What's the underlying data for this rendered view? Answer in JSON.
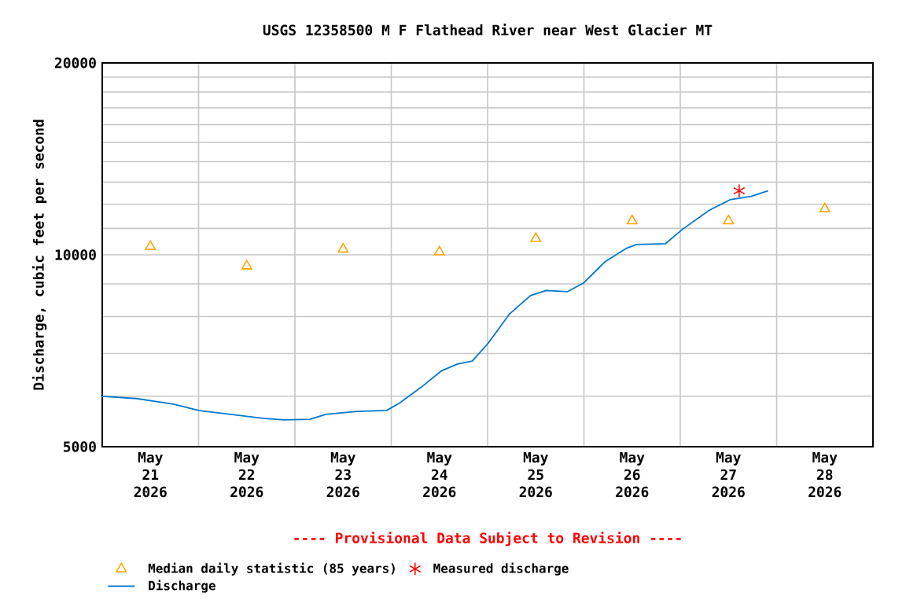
{
  "chart_data": {
    "type": "line",
    "title": "USGS 12358500 M F Flathead River near West Glacier MT",
    "ylabel": "Discharge, cubic feet per second",
    "annotations": [
      "---- Provisional Data Subject to Revision ----"
    ],
    "log": "y",
    "grid": true,
    "legend": "bottom",
    "xlim": [
      "2026-05-21T00:00",
      "2026-05-29T00:00"
    ],
    "xticks": [
      {
        "value": "2026-05-22T00:00",
        "label": null
      },
      {
        "value": "2026-05-23T00:00",
        "label": null
      },
      {
        "value": "2026-05-24T00:00",
        "label": null
      },
      {
        "value": "2026-05-25T00:00",
        "label": null
      },
      {
        "value": "2026-05-26T00:00",
        "label": null
      },
      {
        "value": "2026-05-27T00:00",
        "label": null
      },
      {
        "value": "2026-05-28T00:00",
        "label": null
      },
      {
        "value": "2026-05-21T12:00",
        "label": "May 21 2026"
      },
      {
        "value": "2026-05-22T12:00",
        "label": "May 22 2026"
      },
      {
        "value": "2026-05-23T12:00",
        "label": "May 23 2026"
      },
      {
        "value": "2026-05-24T12:00",
        "label": "May 24 2026"
      },
      {
        "value": "2026-05-25T12:00",
        "label": "May 25 2026"
      },
      {
        "value": "2026-05-26T12:00",
        "label": "May 26 2026"
      },
      {
        "value": "2026-05-27T12:00",
        "label": "May 27 2026"
      },
      {
        "value": "2026-05-28T12:00",
        "label": "May 28 2026"
      }
    ],
    "ylim": [
      5000,
      20000
    ],
    "yticks": [
      5000,
      {
        "value": 6000,
        "label": null
      },
      {
        "value": 7000,
        "label": null
      },
      {
        "value": 8000,
        "label": null
      },
      {
        "value": 9000,
        "label": null
      },
      10000,
      {
        "value": 11000,
        "label": null
      },
      {
        "value": 12000,
        "label": null
      },
      {
        "value": 13000,
        "label": null
      },
      {
        "value": 14000,
        "label": null
      },
      {
        "value": 15000,
        "label": null
      },
      {
        "value": 16000,
        "label": null
      },
      {
        "value": 17000,
        "label": null
      },
      {
        "value": 18000,
        "label": null
      },
      {
        "value": 19000,
        "label": null
      },
      20000
    ],
    "series": [
      {
        "name": "Median daily statistic (85 years)",
        "type": "scatter",
        "marker": "triangle",
        "color": "#ffa500",
        "x": [
          "2026-05-21T12:00",
          "2026-05-22T12:00",
          "2026-05-23T12:00",
          "2026-05-24T12:00",
          "2026-05-25T12:00",
          "2026-05-26T12:00",
          "2026-05-27T12:00",
          "2026-05-28T12:00"
        ],
        "values": [
          10300,
          9600,
          10200,
          10100,
          10600,
          11300,
          11300,
          11800
        ]
      },
      {
        "name": "Measured discharge",
        "type": "scatter",
        "marker": "cross",
        "color": "#ff0000",
        "x": [
          "2026-05-27T14:40"
        ],
        "values": [
          12600
        ]
      },
      {
        "name": "Discharge",
        "marker": "none",
        "line_style": "solid",
        "color": "#0077cc",
        "x": [
          "2026-05-21T00:00",
          "2026-05-21T08:30",
          "2026-05-21T17:45",
          "2026-05-22T00:00",
          "2026-05-22T08:00",
          "2026-05-22T16:00",
          "2026-05-22T21:15",
          "2026-05-23T03:45",
          "2026-05-23T07:40",
          "2026-05-23T15:30",
          "2026-05-23T22:50",
          "2026-05-24T02:00",
          "2026-05-24T07:20",
          "2026-05-24T12:35",
          "2026-05-24T16:30",
          "2026-05-24T20:10",
          "2026-05-25T00:10",
          "2026-05-25T05:25",
          "2026-05-25T10:40",
          "2026-05-25T14:35",
          "2026-05-25T19:50",
          "2026-05-26T00:00",
          "2026-05-26T05:15",
          "2026-05-26T10:30",
          "2026-05-26T13:05",
          "2026-05-26T20:20",
          "2026-05-27T00:35",
          "2026-05-27T07:10",
          "2026-05-27T12:25",
          "2026-05-27T17:40",
          "2026-05-27T21:50"
        ],
        "values": [
          6000,
          5950,
          5830,
          5700,
          5620,
          5540,
          5510,
          5520,
          5620,
          5680,
          5700,
          5850,
          6190,
          6580,
          6740,
          6810,
          7270,
          8070,
          8630,
          8790,
          8750,
          9040,
          9750,
          10230,
          10380,
          10410,
          10970,
          11740,
          12200,
          12350,
          12600
        ]
      }
    ]
  }
}
